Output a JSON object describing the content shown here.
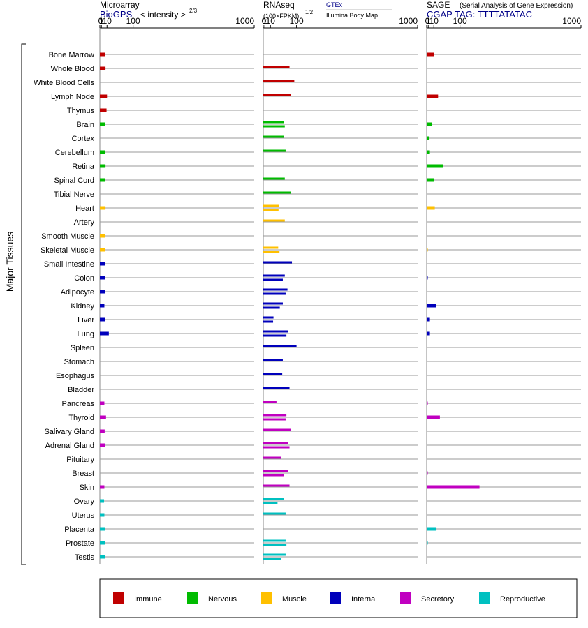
{
  "headers": {
    "microarray": {
      "title": "Microarray",
      "source": "BioGPS",
      "unit": "< intensity >",
      "unit_exp": "2/3"
    },
    "rnaseq": {
      "title": "RNAseq",
      "unit": "(100×FPKM)",
      "unit_exp": "1/2",
      "source1": "GTEx",
      "source2": "Illumina Body Map"
    },
    "sage": {
      "title": "SAGE",
      "subtitle": "(Serial Analysis of Gene Expression)",
      "tag": "CGAP TAG: TTTTATATAC"
    }
  },
  "y_axis_label": "Major Tissues",
  "colors": {
    "Immune": "#c00000",
    "Nervous": "#00bb00",
    "Muscle": "#ffc000",
    "Internal": "#0000bb",
    "Secretory": "#c000c0",
    "Reproductive": "#00c0c0"
  },
  "legend": [
    "Immune",
    "Nervous",
    "Muscle",
    "Internal",
    "Secretory",
    "Reproductive"
  ],
  "chart_data": {
    "type": "bar",
    "orientation": "horizontal",
    "x_scale": "power",
    "xlim": [
      0,
      1000
    ],
    "ticks": [
      0,
      1,
      10,
      100,
      1000
    ],
    "panels": [
      "Microarray",
      "RNAseq",
      "SAGE"
    ],
    "tissues": [
      {
        "name": "Bone Marrow",
        "group": "Immune",
        "microarray": [
          6
        ],
        "rnaseq": [],
        "sage": [
          10
        ]
      },
      {
        "name": "Whole Blood",
        "group": "Immune",
        "microarray": [
          7
        ],
        "rnaseq": [
          70
        ],
        "sage": []
      },
      {
        "name": "White Blood Cells",
        "group": "Immune",
        "microarray": [],
        "rnaseq": [
          90
        ],
        "sage": []
      },
      {
        "name": "Lymph Node",
        "group": "Immune",
        "microarray": [
          10
        ],
        "rnaseq": [
          75
        ],
        "sage": [
          20
        ]
      },
      {
        "name": "Thymus",
        "group": "Immune",
        "microarray": [
          9
        ],
        "rnaseq": [],
        "sage": []
      },
      {
        "name": "Brain",
        "group": "Nervous",
        "microarray": [
          6
        ],
        "rnaseq": [
          50,
          52
        ],
        "sage": [
          6
        ]
      },
      {
        "name": "Cortex",
        "group": "Nervous",
        "microarray": [],
        "rnaseq": [
          48
        ],
        "sage": [
          2.5
        ]
      },
      {
        "name": "Cerebellum",
        "group": "Nervous",
        "microarray": [
          6.5
        ],
        "rnaseq": [
          55
        ],
        "sage": [
          3
        ]
      },
      {
        "name": "Retina",
        "group": "Nervous",
        "microarray": [
          7
        ],
        "rnaseq": [],
        "sage": [
          35
        ]
      },
      {
        "name": "Spinal Cord",
        "group": "Nervous",
        "microarray": [
          6.5
        ],
        "rnaseq": [
          52
        ],
        "sage": [
          11
        ]
      },
      {
        "name": "Tibial Nerve",
        "group": "Nervous",
        "microarray": [],
        "rnaseq": [
          75
        ],
        "sage": []
      },
      {
        "name": "Heart",
        "group": "Muscle",
        "microarray": [
          7
        ],
        "rnaseq": [
          33,
          31
        ],
        "sage": [
          12
        ]
      },
      {
        "name": "Artery",
        "group": "Muscle",
        "microarray": [],
        "rnaseq": [
          52
        ],
        "sage": []
      },
      {
        "name": "Smooth Muscle",
        "group": "Muscle",
        "microarray": [
          6
        ],
        "rnaseq": [],
        "sage": []
      },
      {
        "name": "Skeletal Muscle",
        "group": "Muscle",
        "microarray": [
          6
        ],
        "rnaseq": [
          30,
          34
        ],
        "sage": [
          0.001
        ]
      },
      {
        "name": "Small Intestine",
        "group": "Internal",
        "microarray": [
          6
        ],
        "rnaseq": [
          80
        ],
        "sage": []
      },
      {
        "name": "Colon",
        "group": "Internal",
        "microarray": [
          6
        ],
        "rnaseq": [
          52,
          45
        ],
        "sage": [
          0.001
        ]
      },
      {
        "name": "Adipocyte",
        "group": "Internal",
        "microarray": [
          6
        ],
        "rnaseq": [
          62,
          55
        ],
        "sage": []
      },
      {
        "name": "Kidney",
        "group": "Internal",
        "microarray": [
          5
        ],
        "rnaseq": [
          45,
          35
        ],
        "sage": [
          15
        ]
      },
      {
        "name": "Liver",
        "group": "Internal",
        "microarray": [
          6.5
        ],
        "rnaseq": [
          17,
          16
        ],
        "sage": [
          3
        ]
      },
      {
        "name": "Lung",
        "group": "Internal",
        "microarray": [
          14
        ],
        "rnaseq": [
          65,
          58
        ],
        "sage": [
          3
        ]
      },
      {
        "name": "Spleen",
        "group": "Internal",
        "microarray": [],
        "rnaseq": [
          100
        ],
        "sage": []
      },
      {
        "name": "Stomach",
        "group": "Internal",
        "microarray": [],
        "rnaseq": [
          45
        ],
        "sage": []
      },
      {
        "name": "Esophagus",
        "group": "Internal",
        "microarray": [],
        "rnaseq": [
          43
        ],
        "sage": []
      },
      {
        "name": "Bladder",
        "group": "Internal",
        "microarray": [],
        "rnaseq": [
          70
        ],
        "sage": []
      },
      {
        "name": "Pancreas",
        "group": "Secretory",
        "microarray": [
          5
        ],
        "rnaseq": [
          25
        ],
        "sage": [
          0.001
        ]
      },
      {
        "name": "Thyroid",
        "group": "Secretory",
        "microarray": [
          8
        ],
        "rnaseq": [
          58,
          55
        ],
        "sage": [
          25
        ]
      },
      {
        "name": "Salivary Gland",
        "group": "Secretory",
        "microarray": [
          5.5
        ],
        "rnaseq": [
          75
        ],
        "sage": []
      },
      {
        "name": "Adrenal Gland",
        "group": "Secretory",
        "microarray": [
          6
        ],
        "rnaseq": [
          65,
          70
        ],
        "sage": []
      },
      {
        "name": "Pituitary",
        "group": "Secretory",
        "microarray": [],
        "rnaseq": [
          40
        ],
        "sage": []
      },
      {
        "name": "Breast",
        "group": "Secretory",
        "microarray": [],
        "rnaseq": [
          65,
          50
        ],
        "sage": [
          0.001
        ]
      },
      {
        "name": "Skin",
        "group": "Secretory",
        "microarray": [
          5
        ],
        "rnaseq": [
          70
        ],
        "sage": [
          200
        ]
      },
      {
        "name": "Ovary",
        "group": "Reproductive",
        "microarray": [
          4.5
        ],
        "rnaseq": [
          50,
          28
        ],
        "sage": []
      },
      {
        "name": "Uterus",
        "group": "Reproductive",
        "microarray": [
          5
        ],
        "rnaseq": [
          55
        ],
        "sage": []
      },
      {
        "name": "Placenta",
        "group": "Reproductive",
        "microarray": [
          6
        ],
        "rnaseq": [],
        "sage": [
          16
        ]
      },
      {
        "name": "Prostate",
        "group": "Reproductive",
        "microarray": [
          6.5
        ],
        "rnaseq": [
          55,
          58
        ],
        "sage": [
          0.001
        ]
      },
      {
        "name": "Testis",
        "group": "Reproductive",
        "microarray": [
          6.5
        ],
        "rnaseq": [
          55,
          40
        ],
        "sage": []
      }
    ]
  }
}
